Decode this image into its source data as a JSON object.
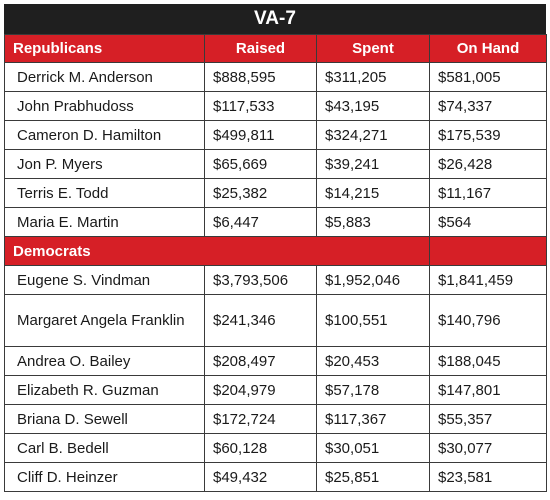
{
  "title": "VA-7",
  "columns": [
    "Republicans",
    "Raised",
    "Spent",
    "On Hand"
  ],
  "sections": [
    {
      "label": "Republicans",
      "rows": [
        {
          "name": "Derrick M. Anderson",
          "raised": "$888,595",
          "spent": "$311,205",
          "on_hand": "$581,005"
        },
        {
          "name": "John Prabhudoss",
          "raised": "$117,533",
          "spent": "$43,195",
          "on_hand": "$74,337"
        },
        {
          "name": "Cameron D. Hamilton",
          "raised": "$499,811",
          "spent": "$324,271",
          "on_hand": "$175,539"
        },
        {
          "name": "Jon P. Myers",
          "raised": "$65,669",
          "spent": "$39,241",
          "on_hand": "$26,428"
        },
        {
          "name": "Terris E. Todd",
          "raised": "$25,382",
          "spent": "$14,215",
          "on_hand": "$11,167"
        },
        {
          "name": "Maria E. Martin",
          "raised": "$6,447",
          "spent": "$5,883",
          "on_hand": "$564"
        }
      ]
    },
    {
      "label": "Democrats",
      "rows": [
        {
          "name": "Eugene S. Vindman",
          "raised": "$3,793,506",
          "spent": "$1,952,046",
          "on_hand": "$1,841,459"
        },
        {
          "name": "Margaret Angela Franklin",
          "raised": "$241,346",
          "spent": "$100,551",
          "on_hand": "$140,796"
        },
        {
          "name": "Andrea O. Bailey",
          "raised": "$208,497",
          "spent": "$20,453",
          "on_hand": "$188,045"
        },
        {
          "name": "Elizabeth R. Guzman",
          "raised": "$204,979",
          "spent": "$57,178",
          "on_hand": "$147,801"
        },
        {
          "name": "Briana D. Sewell",
          "raised": "$172,724",
          "spent": "$117,367",
          "on_hand": "$55,357"
        },
        {
          "name": "Carl B. Bedell",
          "raised": "$60,128",
          "spent": "$30,051",
          "on_hand": "$30,077"
        },
        {
          "name": "Cliff D. Heinzer",
          "raised": "$49,432",
          "spent": "$25,851",
          "on_hand": "$23,581"
        }
      ]
    }
  ],
  "colors": {
    "header_bg": "#1f1f1f",
    "accent": "#d61f26",
    "text": "#1a1a1a"
  },
  "chart_data": {
    "type": "table",
    "title": "VA-7",
    "columns": [
      "Raised",
      "Spent",
      "On Hand"
    ],
    "groups": [
      {
        "name": "Republicans",
        "rows": [
          {
            "candidate": "Derrick M. Anderson",
            "raised": 888595,
            "spent": 311205,
            "on_hand": 581005
          },
          {
            "candidate": "John Prabhudoss",
            "raised": 117533,
            "spent": 43195,
            "on_hand": 74337
          },
          {
            "candidate": "Cameron D. Hamilton",
            "raised": 499811,
            "spent": 324271,
            "on_hand": 175539
          },
          {
            "candidate": "Jon P. Myers",
            "raised": 65669,
            "spent": 39241,
            "on_hand": 26428
          },
          {
            "candidate": "Terris E. Todd",
            "raised": 25382,
            "spent": 14215,
            "on_hand": 11167
          },
          {
            "candidate": "Maria E. Martin",
            "raised": 6447,
            "spent": 5883,
            "on_hand": 564
          }
        ]
      },
      {
        "name": "Democrats",
        "rows": [
          {
            "candidate": "Eugene S. Vindman",
            "raised": 3793506,
            "spent": 1952046,
            "on_hand": 1841459
          },
          {
            "candidate": "Margaret Angela Franklin",
            "raised": 241346,
            "spent": 100551,
            "on_hand": 140796
          },
          {
            "candidate": "Andrea O. Bailey",
            "raised": 208497,
            "spent": 20453,
            "on_hand": 188045
          },
          {
            "candidate": "Elizabeth R. Guzman",
            "raised": 204979,
            "spent": 57178,
            "on_hand": 147801
          },
          {
            "candidate": "Briana D. Sewell",
            "raised": 172724,
            "spent": 117367,
            "on_hand": 55357
          },
          {
            "candidate": "Carl B. Bedell",
            "raised": 60128,
            "spent": 30051,
            "on_hand": 30077
          },
          {
            "candidate": "Cliff D. Heinzer",
            "raised": 49432,
            "spent": 25851,
            "on_hand": 23581
          }
        ]
      }
    ]
  }
}
